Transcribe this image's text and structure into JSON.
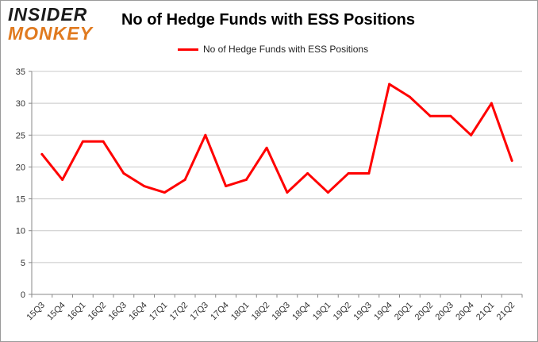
{
  "logo": {
    "line1": "INSIDER",
    "line2": "MONKEY"
  },
  "chart_data": {
    "type": "line",
    "title": "No of Hedge Funds with ESS Positions",
    "xlabel": "",
    "ylabel": "",
    "categories": [
      "15Q3",
      "15Q4",
      "16Q1",
      "16Q2",
      "16Q3",
      "16Q4",
      "17Q1",
      "17Q2",
      "17Q3",
      "17Q4",
      "18Q1",
      "18Q2",
      "18Q3",
      "18Q4",
      "19Q1",
      "19Q2",
      "19Q3",
      "19Q4",
      "20Q1",
      "20Q2",
      "20Q3",
      "20Q4",
      "21Q1",
      "21Q2"
    ],
    "series": [
      {
        "name": "No of Hedge Funds with ESS Positions",
        "color": "#ff0000",
        "values": [
          22,
          18,
          24,
          24,
          19,
          17,
          16,
          18,
          25,
          17,
          18,
          23,
          16,
          19,
          16,
          19,
          19,
          33,
          31,
          28,
          28,
          25,
          30,
          21
        ]
      }
    ],
    "ylim": [
      0,
      35
    ],
    "yticks": [
      0,
      5,
      10,
      15,
      20,
      25,
      30,
      35
    ],
    "grid": true,
    "legend_position": "top-center"
  }
}
